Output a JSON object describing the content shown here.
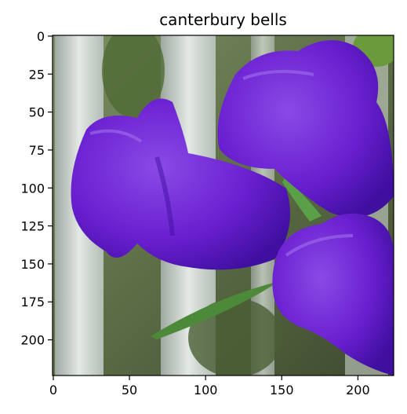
{
  "title": "canterbury bells",
  "image": {
    "width": 224,
    "height": 224,
    "subject": "purple bell-shaped flowers",
    "colors": {
      "petal": "#6a1fd0",
      "petal_light": "#8a4ae6",
      "petal_dark": "#3f0fa0",
      "bark": "#cdd6cf",
      "foliage": "#5f7a3a",
      "leaf": "#4c8a3a"
    }
  },
  "axes": {
    "x_ticks": [
      "0",
      "50",
      "100",
      "150",
      "200"
    ],
    "y_ticks": [
      "0",
      "25",
      "50",
      "75",
      "100",
      "125",
      "150",
      "175",
      "200"
    ],
    "x_range": [
      0,
      224
    ],
    "y_range": [
      0,
      224
    ]
  }
}
